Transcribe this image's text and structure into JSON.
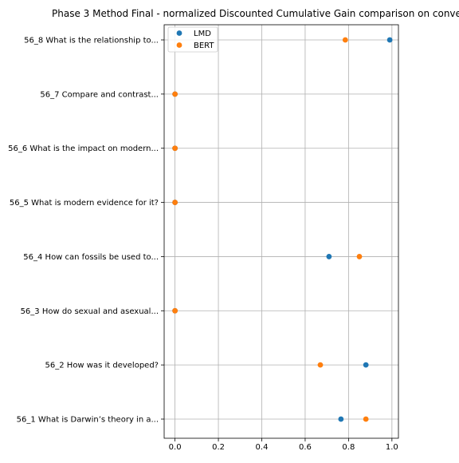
{
  "chart_data": {
    "type": "scatter",
    "title": "Phase 3 Method Final - normalized Discounted Cumulative Gain comparison on conve",
    "xlabel": "",
    "ylabel": "",
    "xlim": [
      -0.05,
      1.03
    ],
    "xticks": [
      0.0,
      0.2,
      0.4,
      0.6,
      0.8,
      1.0
    ],
    "xtick_labels": [
      "0.0",
      "0.2",
      "0.4",
      "0.6",
      "0.8",
      "1.0"
    ],
    "grid": true,
    "legend_position": "top-left",
    "categories": [
      "56_1 What is Darwin’s theory in a...",
      "56_2 How was it developed?",
      "56_3 How do sexual and asexual...",
      "56_4 How can fossils be used to...",
      "56_5 What is modern evidence for it?",
      "56_6 What is the impact on modern...",
      "56_7 Compare and contrast...",
      "56_8 What is the relationship to..."
    ],
    "series": [
      {
        "name": "LMD",
        "color": "#1f77b4",
        "values": [
          0.765,
          0.88,
          0.0,
          0.71,
          0.0,
          0.0,
          0.0,
          0.99
        ]
      },
      {
        "name": "BERT",
        "color": "#ff7f0e",
        "values": [
          0.88,
          0.67,
          0.0,
          0.85,
          0.0,
          0.0,
          0.0,
          0.785
        ]
      }
    ]
  }
}
